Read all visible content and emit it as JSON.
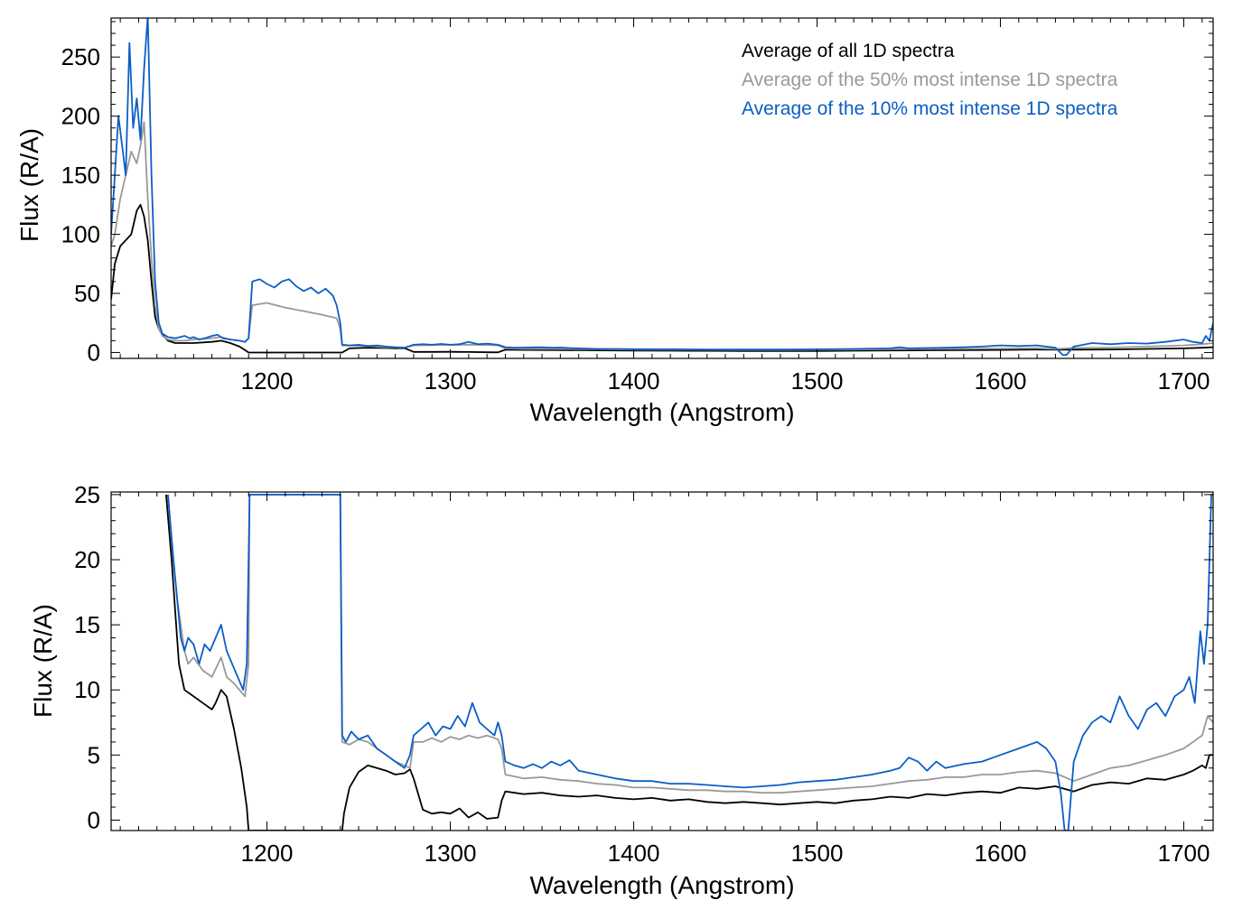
{
  "chart_data": [
    {
      "type": "line",
      "xlabel": "Wavelength (Angstrom)",
      "ylabel": "Flux (R/A)",
      "xlim": [
        1115,
        1716
      ],
      "ylim": [
        -5,
        283
      ],
      "x_ticks": [
        1200,
        1300,
        1400,
        1500,
        1600,
        1700
      ],
      "y_ticks": [
        0,
        50,
        100,
        150,
        200,
        250
      ],
      "legend_position": "top-right",
      "series": [
        {
          "name": "Average of all 1D spectra",
          "color": "#000000",
          "x": [
            1115,
            1117,
            1120,
            1123,
            1126,
            1129,
            1131,
            1133,
            1135,
            1137,
            1139,
            1141,
            1143,
            1146,
            1150,
            1155,
            1160,
            1170,
            1175,
            1180,
            1185,
            1188,
            1190,
            1200,
            1240,
            1241,
            1245,
            1255,
            1265,
            1270,
            1275,
            1280,
            1290,
            1300,
            1310,
            1320,
            1326,
            1330,
            1340,
            1360,
            1380,
            1400,
            1420,
            1440,
            1460,
            1480,
            1500,
            1520,
            1540,
            1560,
            1580,
            1600,
            1620,
            1630,
            1640,
            1660,
            1680,
            1700,
            1710,
            1716
          ],
          "y": [
            45,
            75,
            90,
            95,
            100,
            120,
            125,
            115,
            95,
            60,
            30,
            20,
            15,
            10,
            8,
            8,
            8,
            9,
            10,
            8,
            5,
            2,
            0,
            0,
            0,
            0,
            3.5,
            4.0,
            3.8,
            3.5,
            3.7,
            0.5,
            0.5,
            0.6,
            0.4,
            0.2,
            0.1,
            2.3,
            2.2,
            2.0,
            1.8,
            1.6,
            1.5,
            1.4,
            1.2,
            1.2,
            1.3,
            1.5,
            1.7,
            1.9,
            2.0,
            2.2,
            2.5,
            2.3,
            2.4,
            2.6,
            3.0,
            3.5,
            4.0,
            4.5
          ]
        },
        {
          "name": "Average of the 50% most intense 1D spectra",
          "color": "#999999",
          "x": [
            1115,
            1117,
            1120,
            1123,
            1126,
            1129,
            1131,
            1133,
            1135,
            1137,
            1139,
            1141,
            1143,
            1146,
            1150,
            1155,
            1160,
            1170,
            1175,
            1180,
            1185,
            1188,
            1190,
            1192,
            1200,
            1210,
            1220,
            1230,
            1238,
            1240,
            1241,
            1245,
            1255,
            1265,
            1275,
            1280,
            1290,
            1300,
            1310,
            1320,
            1326,
            1330,
            1340,
            1360,
            1380,
            1400,
            1420,
            1440,
            1460,
            1480,
            1500,
            1520,
            1540,
            1560,
            1580,
            1600,
            1620,
            1630,
            1640,
            1660,
            1680,
            1700,
            1710,
            1716
          ],
          "y": [
            90,
            100,
            130,
            150,
            170,
            160,
            175,
            195,
            130,
            80,
            40,
            20,
            14,
            11,
            10,
            10,
            11,
            12,
            13,
            11,
            10,
            9,
            12,
            40,
            42,
            38,
            35,
            32,
            29,
            20,
            6,
            5.8,
            5.5,
            4.5,
            4.2,
            6.0,
            6.2,
            6.4,
            6.5,
            6.3,
            6.0,
            3.5,
            3.2,
            3.0,
            2.7,
            2.5,
            2.4,
            2.3,
            2.2,
            2.2,
            2.3,
            2.5,
            2.8,
            3.0,
            3.2,
            3.4,
            3.6,
            3.0,
            3.8,
            4.2,
            5.0,
            6.0,
            7.0,
            8.0
          ]
        },
        {
          "name": "Average of the 10% most intense 1D spectra",
          "color": "#0b5ec5",
          "x": [
            1115,
            1117,
            1119,
            1121,
            1123,
            1125,
            1127,
            1129,
            1131,
            1133,
            1135,
            1137,
            1139,
            1141,
            1143,
            1146,
            1150,
            1155,
            1158,
            1160,
            1163,
            1166,
            1170,
            1173,
            1176,
            1180,
            1185,
            1188,
            1190,
            1192,
            1196,
            1200,
            1204,
            1208,
            1212,
            1216,
            1220,
            1224,
            1228,
            1232,
            1236,
            1238,
            1240,
            1241,
            1245,
            1250,
            1255,
            1260,
            1265,
            1270,
            1275,
            1280,
            1285,
            1290,
            1295,
            1300,
            1305,
            1310,
            1315,
            1320,
            1326,
            1330,
            1335,
            1340,
            1345,
            1350,
            1355,
            1360,
            1365,
            1370,
            1380,
            1390,
            1400,
            1420,
            1440,
            1460,
            1480,
            1500,
            1520,
            1540,
            1545,
            1550,
            1560,
            1570,
            1580,
            1590,
            1600,
            1610,
            1620,
            1630,
            1634,
            1636,
            1640,
            1650,
            1660,
            1670,
            1680,
            1690,
            1700,
            1705,
            1710,
            1712,
            1714,
            1716
          ],
          "y": [
            100,
            150,
            200,
            175,
            150,
            262,
            190,
            215,
            180,
            240,
            285,
            150,
            60,
            25,
            16,
            13,
            12,
            14,
            12,
            13,
            11,
            12,
            14,
            15,
            12,
            11,
            10,
            9,
            12,
            60,
            62,
            58,
            55,
            60,
            62,
            56,
            52,
            55,
            50,
            54,
            48,
            40,
            25,
            6.5,
            6.0,
            6.5,
            5.5,
            6.0,
            5.0,
            4.5,
            4.0,
            6.5,
            7.0,
            6.5,
            7.2,
            6.5,
            7.0,
            9.0,
            7.0,
            7.5,
            6.5,
            4.5,
            4.0,
            4.2,
            4.3,
            4.5,
            4.0,
            4.2,
            3.8,
            3.5,
            3.0,
            3.0,
            2.8,
            2.7,
            2.6,
            2.5,
            2.5,
            2.7,
            3.0,
            3.5,
            4.5,
            3.5,
            3.8,
            4.0,
            4.5,
            5.0,
            6.0,
            5.5,
            6.0,
            4.0,
            -2.0,
            -2.0,
            5.0,
            8.0,
            7.0,
            8.0,
            7.5,
            9.0,
            11.0,
            9.0,
            8.0,
            14.0,
            10.0,
            25.0
          ]
        }
      ]
    },
    {
      "type": "line",
      "xlabel": "Wavelength (Angstrom)",
      "ylabel": "Flux (R/A)",
      "xlim": [
        1115,
        1716
      ],
      "ylim": [
        -0.8,
        25.2
      ],
      "x_ticks": [
        1200,
        1300,
        1400,
        1500,
        1600,
        1700
      ],
      "y_ticks": [
        0,
        5,
        10,
        15,
        20,
        25
      ],
      "series": [
        {
          "name": "Average of all 1D spectra",
          "color": "#000000",
          "x": [
            1145,
            1148,
            1150,
            1152,
            1155,
            1160,
            1165,
            1170,
            1172,
            1175,
            1178,
            1182,
            1186,
            1189,
            1190,
            1241,
            1242,
            1245,
            1250,
            1255,
            1260,
            1265,
            1270,
            1275,
            1278,
            1280,
            1285,
            1290,
            1295,
            1300,
            1305,
            1310,
            1315,
            1320,
            1326,
            1328,
            1330,
            1340,
            1350,
            1360,
            1370,
            1380,
            1390,
            1400,
            1410,
            1420,
            1430,
            1440,
            1450,
            1460,
            1470,
            1480,
            1490,
            1500,
            1510,
            1520,
            1530,
            1540,
            1550,
            1560,
            1570,
            1580,
            1590,
            1600,
            1610,
            1620,
            1630,
            1640,
            1650,
            1660,
            1670,
            1680,
            1690,
            1700,
            1705,
            1710,
            1712,
            1714,
            1716
          ],
          "y": [
            25,
            20,
            16,
            12,
            10,
            9.5,
            9,
            8.5,
            9,
            10,
            9.5,
            7,
            4,
            1,
            -0.8,
            -0.8,
            0.5,
            2.5,
            3.7,
            4.2,
            4.0,
            3.8,
            3.5,
            3.6,
            3.9,
            3.2,
            0.8,
            0.5,
            0.6,
            0.5,
            0.9,
            0.2,
            0.6,
            0.1,
            0.2,
            1.5,
            2.2,
            2.0,
            2.1,
            1.9,
            1.8,
            1.9,
            1.7,
            1.6,
            1.7,
            1.5,
            1.6,
            1.4,
            1.3,
            1.4,
            1.3,
            1.2,
            1.3,
            1.4,
            1.3,
            1.5,
            1.6,
            1.8,
            1.7,
            2.0,
            1.9,
            2.1,
            2.2,
            2.1,
            2.5,
            2.4,
            2.6,
            2.2,
            2.7,
            2.9,
            2.8,
            3.2,
            3.1,
            3.5,
            3.8,
            4.2,
            4.0,
            5.0,
            5.0
          ]
        },
        {
          "name": "Average of the 50% most intense 1D spectra",
          "color": "#999999",
          "x": [
            1146,
            1149,
            1151,
            1153,
            1155,
            1157,
            1160,
            1165,
            1170,
            1175,
            1178,
            1182,
            1185,
            1188,
            1190,
            1190.5,
            1240,
            1241,
            1245,
            1250,
            1255,
            1260,
            1265,
            1270,
            1275,
            1278,
            1280,
            1285,
            1290,
            1295,
            1300,
            1305,
            1310,
            1315,
            1320,
            1326,
            1328,
            1330,
            1340,
            1350,
            1360,
            1370,
            1380,
            1390,
            1400,
            1410,
            1420,
            1430,
            1440,
            1450,
            1460,
            1470,
            1480,
            1490,
            1500,
            1510,
            1520,
            1530,
            1540,
            1550,
            1560,
            1570,
            1580,
            1590,
            1600,
            1610,
            1620,
            1630,
            1640,
            1650,
            1660,
            1670,
            1680,
            1690,
            1700,
            1705,
            1710,
            1713,
            1716
          ],
          "y": [
            25,
            20,
            17,
            15,
            13,
            12,
            12.5,
            11.5,
            11,
            12.5,
            11,
            10.5,
            10,
            9.5,
            12,
            25,
            25,
            6,
            5.8,
            6.2,
            6.0,
            5.5,
            5.0,
            4.5,
            4.2,
            4.0,
            6.0,
            6.0,
            6.3,
            6.0,
            6.4,
            6.2,
            6.5,
            6.3,
            6.5,
            6.2,
            5.5,
            3.5,
            3.2,
            3.3,
            3.1,
            3.0,
            2.8,
            2.7,
            2.5,
            2.5,
            2.4,
            2.3,
            2.3,
            2.2,
            2.2,
            2.1,
            2.1,
            2.2,
            2.3,
            2.4,
            2.5,
            2.6,
            2.8,
            3.0,
            3.1,
            3.3,
            3.3,
            3.5,
            3.5,
            3.7,
            3.8,
            3.6,
            3.0,
            3.5,
            4.0,
            4.2,
            4.6,
            5.0,
            5.5,
            6.0,
            6.5,
            8.0,
            7.5
          ]
        },
        {
          "name": "Average of the 10% most intense 1D spectra",
          "color": "#0b5ec5",
          "x": [
            1146,
            1149,
            1151,
            1153,
            1155,
            1157,
            1160,
            1163,
            1166,
            1169,
            1172,
            1175,
            1178,
            1181,
            1184,
            1187,
            1189,
            1190,
            1190.5,
            1240,
            1241,
            1243,
            1246,
            1250,
            1255,
            1260,
            1265,
            1270,
            1275,
            1278,
            1280,
            1284,
            1288,
            1292,
            1296,
            1300,
            1304,
            1308,
            1312,
            1316,
            1320,
            1324,
            1326,
            1328,
            1330,
            1335,
            1340,
            1345,
            1350,
            1355,
            1360,
            1365,
            1370,
            1380,
            1390,
            1400,
            1410,
            1420,
            1430,
            1440,
            1450,
            1460,
            1470,
            1480,
            1490,
            1500,
            1510,
            1520,
            1530,
            1540,
            1545,
            1550,
            1555,
            1560,
            1565,
            1570,
            1580,
            1590,
            1600,
            1610,
            1620,
            1625,
            1630,
            1633,
            1635,
            1637,
            1640,
            1645,
            1650,
            1655,
            1660,
            1665,
            1670,
            1675,
            1680,
            1685,
            1690,
            1695,
            1700,
            1703,
            1706,
            1709,
            1711,
            1713,
            1715,
            1716
          ],
          "y": [
            25,
            20,
            17,
            14,
            13,
            14,
            13.5,
            12,
            13.5,
            13,
            14,
            15,
            13,
            12,
            11,
            10,
            12,
            20,
            25,
            25,
            6.5,
            6.0,
            6.8,
            6.2,
            6.5,
            5.5,
            5.0,
            4.5,
            4.0,
            5.0,
            6.5,
            7.0,
            7.5,
            6.5,
            7.2,
            7.0,
            8.0,
            7.2,
            9.0,
            7.5,
            7.0,
            6.5,
            7.5,
            6.5,
            4.5,
            4.2,
            4.0,
            4.3,
            4.0,
            4.5,
            4.2,
            4.6,
            3.8,
            3.5,
            3.2,
            3.0,
            3.0,
            2.8,
            2.8,
            2.7,
            2.6,
            2.5,
            2.6,
            2.7,
            2.9,
            3.0,
            3.1,
            3.3,
            3.5,
            3.8,
            4.0,
            4.8,
            4.5,
            3.8,
            4.5,
            4.0,
            4.3,
            4.5,
            5.0,
            5.5,
            6.0,
            5.5,
            4.5,
            2.0,
            -0.8,
            -0.8,
            4.5,
            6.5,
            7.5,
            8.0,
            7.5,
            9.5,
            8.0,
            7.0,
            8.5,
            9.0,
            8.0,
            9.5,
            10.0,
            11.0,
            9.0,
            14.5,
            12.0,
            15.0,
            25.0,
            25.0
          ]
        }
      ]
    }
  ]
}
